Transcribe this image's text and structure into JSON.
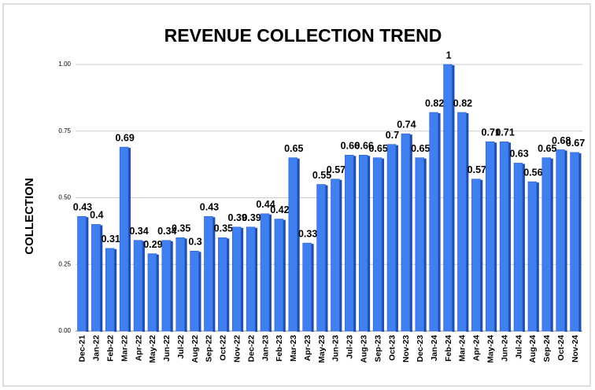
{
  "chart_data": {
    "type": "bar",
    "title": "REVENUE COLLECTION TREND",
    "y_label": "COLLECTION",
    "categories": [
      "Dec-21",
      "Jan-22",
      "Feb-22",
      "Mar-22",
      "Apr-22",
      "May-22",
      "Jun-22",
      "Jul-22",
      "Aug-22",
      "Sep-22",
      "Oct-22",
      "Nov-22",
      "Dec-22",
      "Jan-23",
      "Feb-23",
      "Mar-23",
      "Apr-23",
      "May-23",
      "Jun-23",
      "Jul-23",
      "Aug-23",
      "Sep-23",
      "Oct-23",
      "Nov-23",
      "Dec-23",
      "Jan-24",
      "Feb-24",
      "Mar-24",
      "Apr-24",
      "May-24",
      "Jun-24",
      "Jul-24",
      "Aug-24",
      "Sep-24",
      "Oct-24",
      "Nov-24"
    ],
    "values": [
      0.43,
      0.4,
      0.31,
      0.69,
      0.34,
      0.29,
      0.34,
      0.35,
      0.3,
      0.43,
      0.35,
      0.39,
      0.39,
      0.44,
      0.42,
      0.65,
      0.33,
      0.55,
      0.57,
      0.66,
      0.66,
      0.65,
      0.7,
      0.74,
      0.65,
      0.82,
      1,
      0.82,
      0.57,
      0.71,
      0.71,
      0.63,
      0.56,
      0.65,
      0.68,
      0.67
    ],
    "color": "#3f7ff0",
    "ylim": [
      0,
      1
    ],
    "yticks": [
      {
        "value": 0,
        "label": "0.00"
      },
      {
        "value": 0.25,
        "label": "0.25"
      },
      {
        "value": 0.5,
        "label": "0.50"
      },
      {
        "value": 0.75,
        "label": "0.75"
      },
      {
        "value": 1,
        "label": "1.00"
      }
    ],
    "grid": true
  }
}
